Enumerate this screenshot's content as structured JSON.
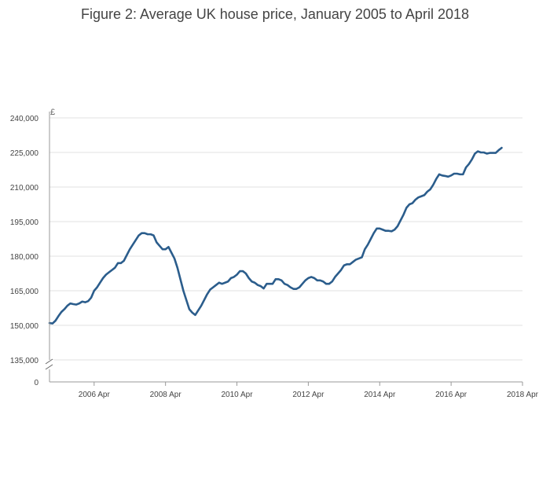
{
  "colors": {
    "line": "#2b5d8c",
    "grid": "#e0e0e0",
    "axis": "#999999",
    "text": "#444444"
  },
  "chart_data": {
    "type": "line",
    "title": "Figure 2: Average UK house price, January 2005 to April 2018",
    "ylabel": "£",
    "xlabel": "",
    "ylim": [
      135000,
      240000
    ],
    "y_ticks": [
      135000,
      150000,
      165000,
      180000,
      195000,
      210000,
      225000,
      240000
    ],
    "y_tick_labels": [
      "135,000",
      "150,000",
      "165,000",
      "180,000",
      "195,000",
      "210,000",
      "225,000",
      "240,000"
    ],
    "y_zero_label": "0",
    "axis_break": true,
    "x_start": "2005-01",
    "x_end": "2018-04",
    "x_ticks": [
      "2006 Apr",
      "2008 Apr",
      "2010 Apr",
      "2012 Apr",
      "2014 Apr",
      "2016 Apr",
      "2018 Apr"
    ],
    "series": [
      {
        "name": "Average UK house price",
        "values": [
          151000,
          150800,
          152000,
          154000,
          155800,
          157000,
          158500,
          159500,
          159200,
          159000,
          159500,
          160300,
          160000,
          160500,
          162000,
          165000,
          166500,
          168500,
          170500,
          172000,
          173000,
          174000,
          175000,
          177000,
          177000,
          178000,
          180500,
          183000,
          185000,
          187000,
          189000,
          190000,
          190000,
          189500,
          189500,
          189000,
          186000,
          184500,
          183000,
          183000,
          184000,
          181500,
          179000,
          175000,
          170000,
          165000,
          161000,
          157000,
          155500,
          154500,
          156500,
          158500,
          161000,
          163500,
          165500,
          166500,
          167500,
          168500,
          168000,
          168500,
          169000,
          170500,
          171000,
          172000,
          173500,
          173500,
          172500,
          170500,
          169000,
          168500,
          167500,
          167000,
          166000,
          168000,
          168000,
          168000,
          170000,
          170000,
          169500,
          168000,
          167500,
          166500,
          165800,
          165800,
          166500,
          168000,
          169500,
          170500,
          171000,
          170500,
          169500,
          169500,
          169000,
          168000,
          168000,
          169000,
          171000,
          172500,
          174000,
          176000,
          176500,
          176500,
          177500,
          178500,
          179000,
          179500,
          183000,
          185000,
          187500,
          190000,
          192000,
          192000,
          191500,
          191000,
          191000,
          190800,
          191500,
          193000,
          195500,
          198000,
          201000,
          202500,
          203000,
          204500,
          205500,
          206000,
          206500,
          208000,
          209000,
          211000,
          213500,
          215500,
          215000,
          214800,
          214500,
          215000,
          215800,
          215800,
          215500,
          215500,
          218500,
          220000,
          222000,
          224500,
          225500,
          225000,
          225000,
          224500,
          224800,
          224800,
          224800,
          226000,
          227000
        ]
      }
    ]
  }
}
